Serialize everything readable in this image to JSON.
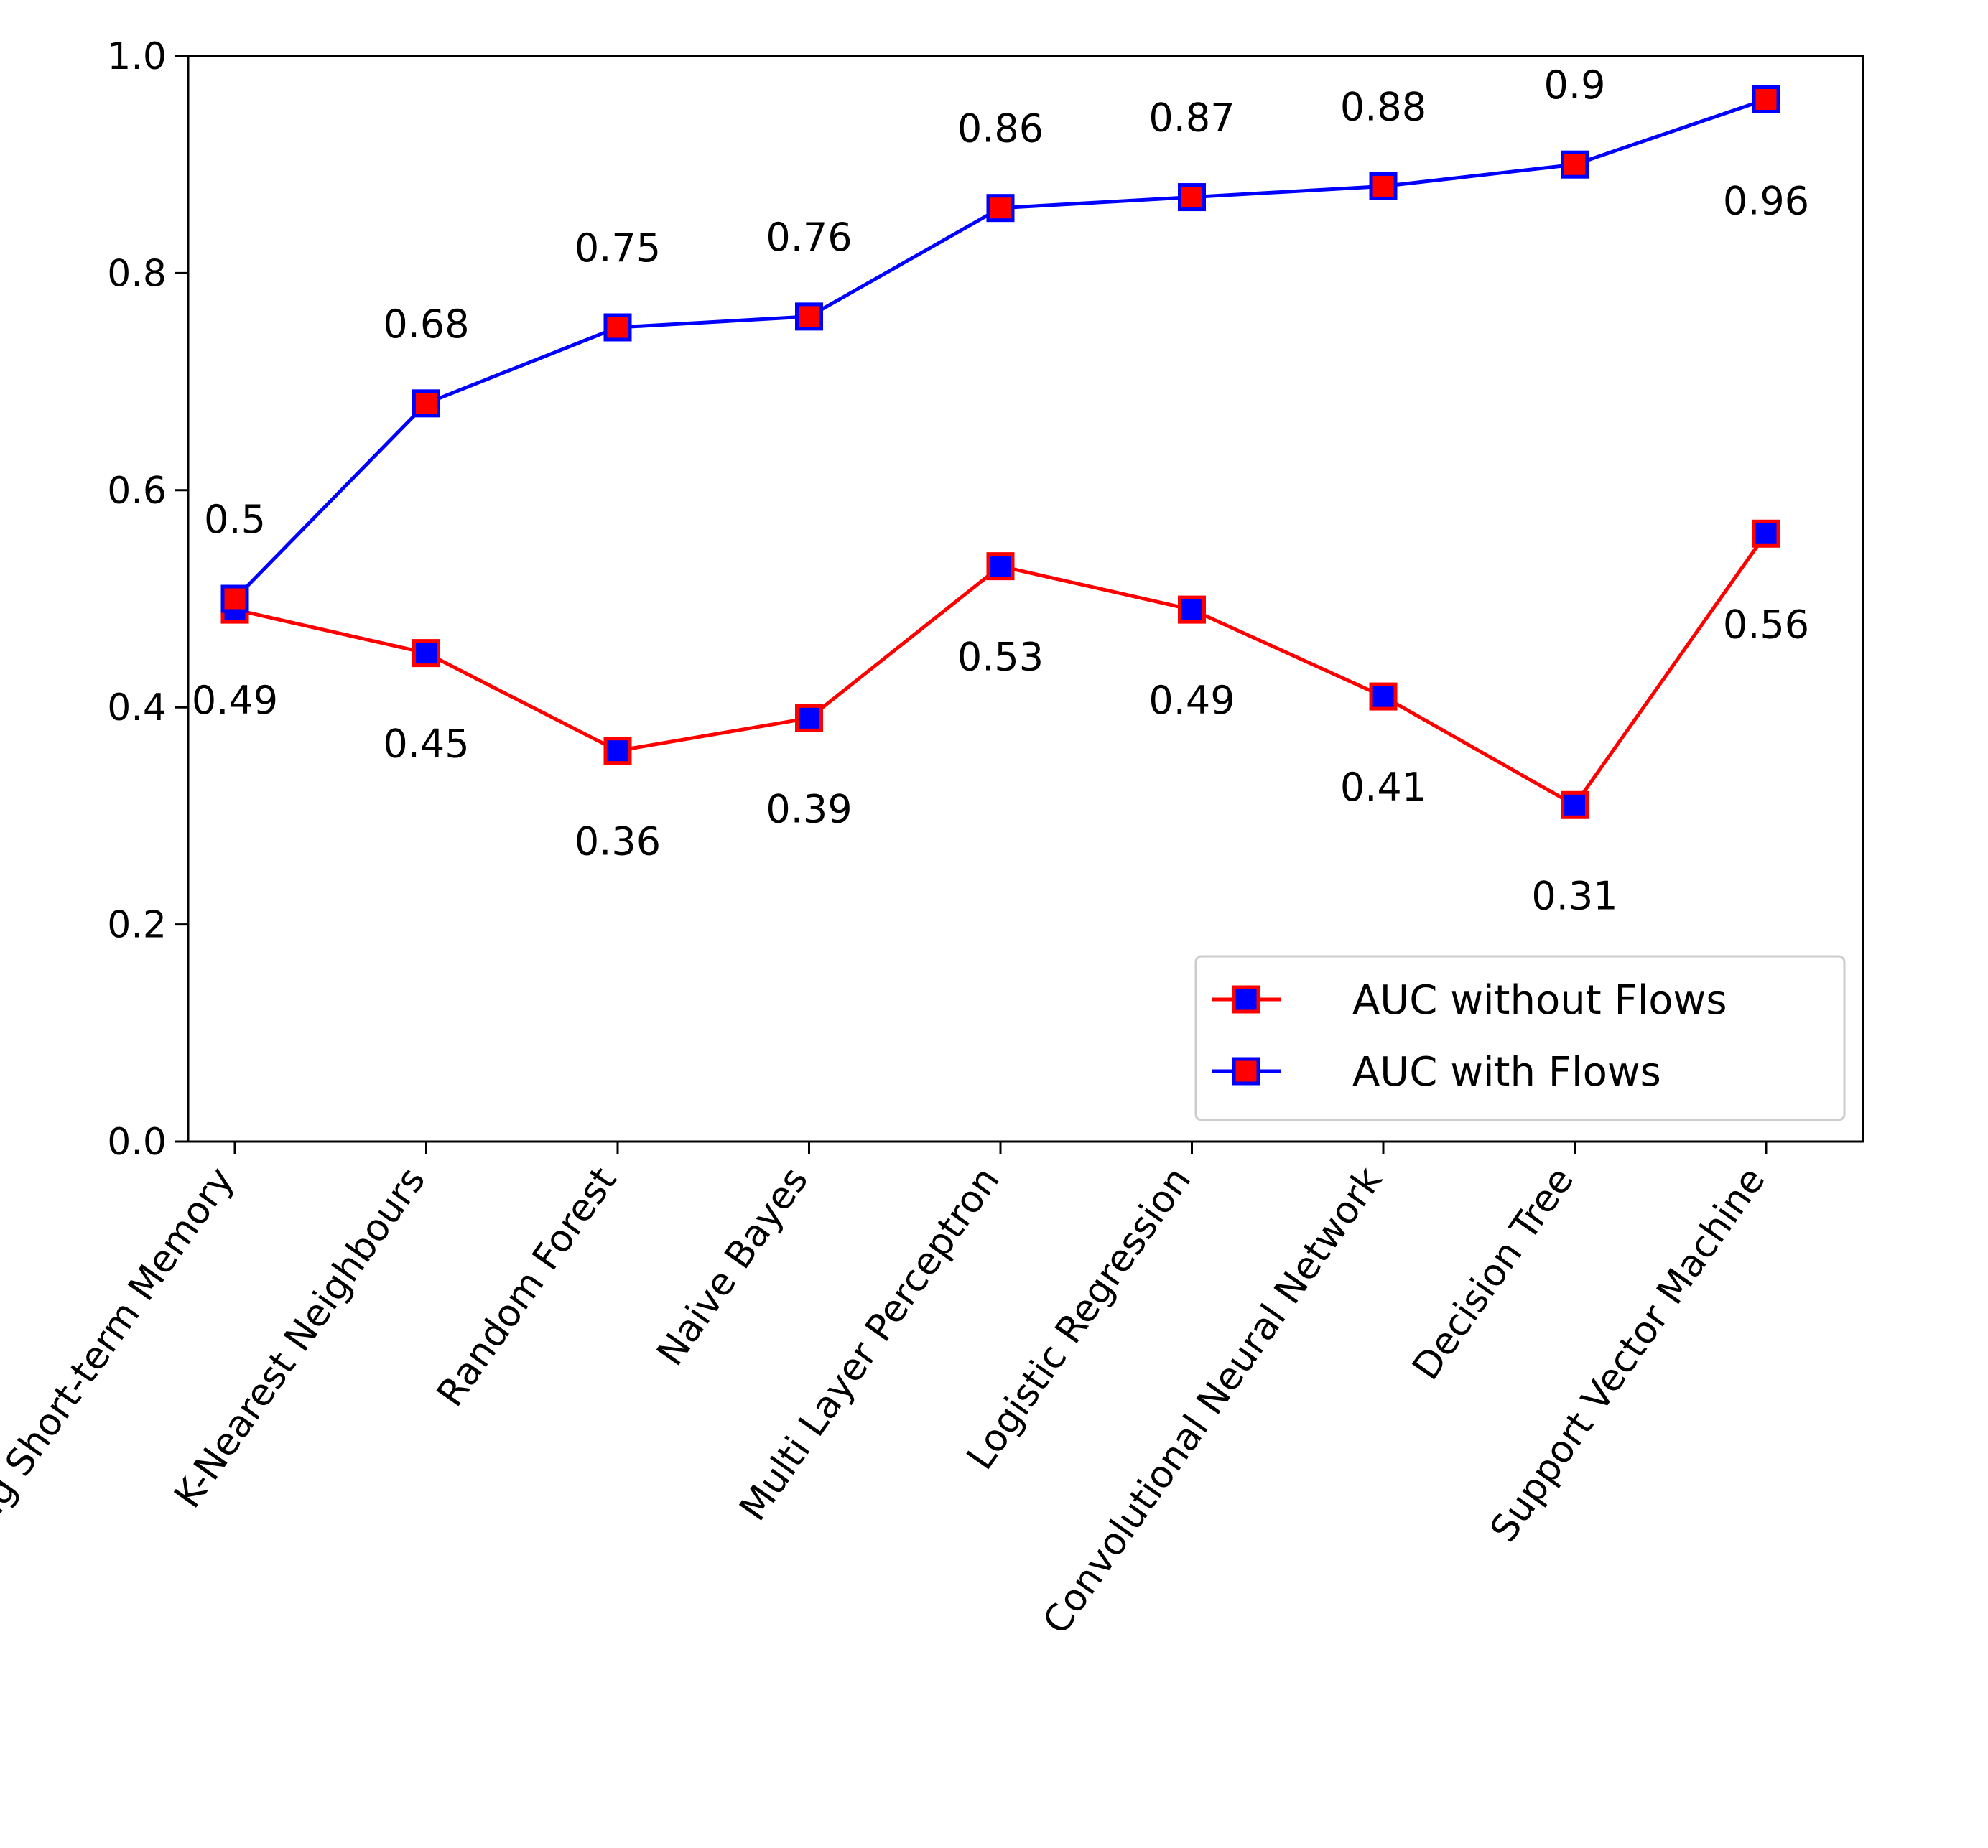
{
  "chart_data": {
    "type": "line",
    "categories": [
      "Long Short-term Memory",
      "K-Nearest Neighbours",
      "Random Forest",
      "Naive Bayes",
      "Multi Layer Perceptron",
      "Logistic Regression",
      "Convolutional Neural Network",
      "Decision Tree",
      "Support Vector Machine"
    ],
    "series": [
      {
        "name": "AUC without Flows",
        "values": [
          0.49,
          0.45,
          0.36,
          0.39,
          0.53,
          0.49,
          0.41,
          0.31,
          0.56
        ],
        "labels": [
          "0.49",
          "0.45",
          "0.36",
          "0.39",
          "0.53",
          "0.49",
          "0.41",
          "0.31",
          "0.56"
        ],
        "line_color": "#ff0000",
        "marker_face": "#0000ff",
        "marker_edge": "#ff0000"
      },
      {
        "name": "AUC with Flows",
        "values": [
          0.5,
          0.68,
          0.75,
          0.76,
          0.86,
          0.87,
          0.88,
          0.9,
          0.96
        ],
        "labels": [
          "0.5",
          "0.68",
          "0.75",
          "0.76",
          "0.86",
          "0.87",
          "0.88",
          "0.9",
          "0.96"
        ],
        "line_color": "#0000ff",
        "marker_face": "#ff0000",
        "marker_edge": "#0000ff"
      }
    ],
    "yticks": [
      "0.0",
      "0.2",
      "0.4",
      "0.6",
      "0.8",
      "1.0"
    ],
    "ylim": [
      0,
      1
    ],
    "title": "",
    "xlabel": "",
    "ylabel": "",
    "grid": false,
    "legend_position": "lower-right"
  }
}
